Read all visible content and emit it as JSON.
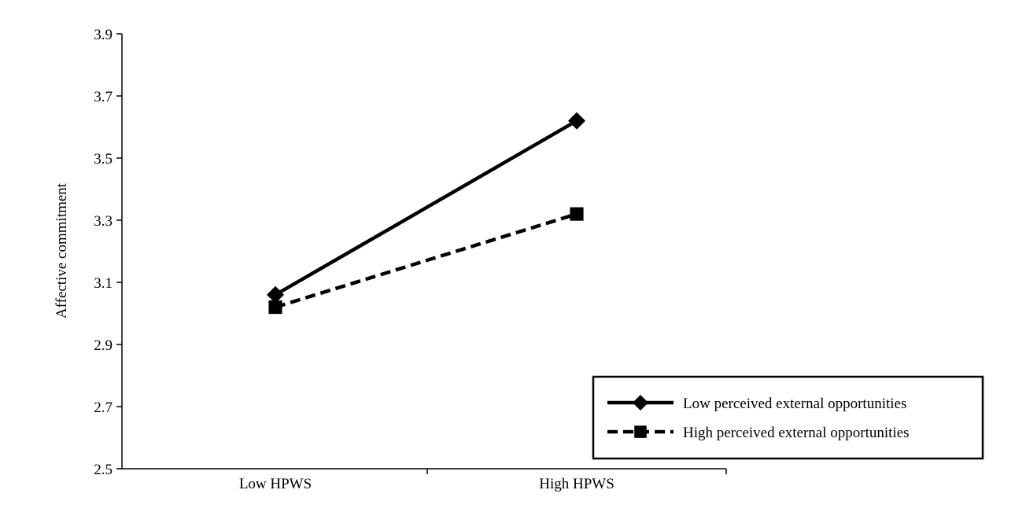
{
  "chart_data": {
    "type": "line",
    "title": "",
    "xlabel": "",
    "ylabel": "Affective commitment",
    "categories": [
      "Low HPWS",
      "High HPWS"
    ],
    "ylim": [
      2.5,
      3.9
    ],
    "yticks": [
      "2.5",
      "2.7",
      "2.9",
      "3.1",
      "3.3",
      "3.5",
      "3.7",
      "3.9"
    ],
    "grid": false,
    "legend_position": "bottom-right",
    "series": [
      {
        "name": "Low perceived external opportunities",
        "values": [
          3.06,
          3.62
        ],
        "line_style": "solid",
        "marker": "diamond",
        "color": "#000000"
      },
      {
        "name": "High perceived external opportunities",
        "values": [
          3.02,
          3.32
        ],
        "line_style": "dashed",
        "marker": "square",
        "color": "#000000"
      }
    ]
  }
}
